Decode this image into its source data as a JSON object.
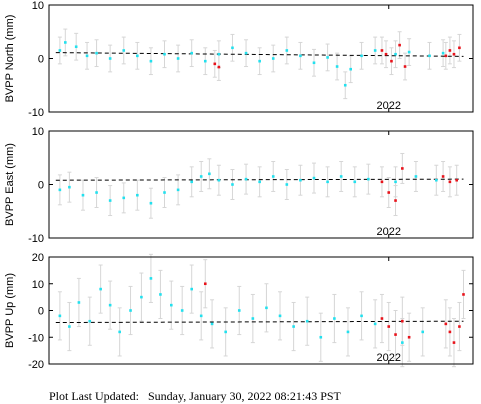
{
  "footer": {
    "label": "Plot Last Updated:",
    "timestamp": "Sunday, January 30, 2022 08:21:43 PST"
  },
  "colors": {
    "current_points": "#22e0ee",
    "recent_points": "#e8131b",
    "error_bars": "#d6d6d6",
    "trend": "#000000",
    "frame": "#000000"
  },
  "chart_data": [
    {
      "type": "scatter",
      "ylabel": "BVPP North (mm)",
      "ylim": [
        -10,
        10
      ],
      "yticks": [
        -10,
        0,
        10
      ],
      "xtick_label": "2022",
      "grid": false,
      "error_bar_mm": 2.5,
      "trend": {
        "x": [
          2019.55,
          2022.55
        ],
        "y": [
          1.1,
          0.4
        ],
        "style": "dashed"
      },
      "series": [
        {
          "color": "#22e0ee",
          "x": [
            2019.58,
            2019.62,
            2019.7,
            2019.78,
            2019.85,
            2019.95,
            2020.05,
            2020.15,
            2020.25,
            2020.35,
            2020.45,
            2020.55,
            2020.65,
            2020.75,
            2020.85,
            2020.95,
            2021.05,
            2021.15,
            2021.25,
            2021.35,
            2021.45,
            2021.55,
            2021.62,
            2021.68,
            2021.72,
            2021.8,
            2021.9,
            2022.05,
            2022.15,
            2022.3,
            2022.4
          ],
          "y": [
            1.5,
            3.0,
            2.2,
            0.5,
            1.0,
            0.0,
            1.5,
            0.5,
            -0.5,
            0.8,
            0.0,
            1.0,
            -0.5,
            0.8,
            2.0,
            1.0,
            -0.5,
            0.0,
            1.5,
            0.5,
            -0.8,
            0.2,
            -1.5,
            -5.0,
            -2.0,
            0.5,
            1.5,
            0.8,
            1.2,
            0.5,
            1.0
          ]
        },
        {
          "color": "#e8131b",
          "x": [
            2020.72,
            2020.75,
            2021.95,
            2021.98,
            2022.02,
            2022.08,
            2022.12,
            2022.42,
            2022.45,
            2022.48,
            2022.52
          ],
          "y": [
            -1.0,
            -1.6,
            1.5,
            0.8,
            -0.5,
            2.5,
            -1.5,
            0.5,
            1.5,
            0.8,
            2.0
          ]
        }
      ]
    },
    {
      "type": "scatter",
      "ylabel": "BVPP East (mm)",
      "ylim": [
        -10,
        10
      ],
      "yticks": [
        -10,
        0,
        10
      ],
      "xtick_label": "2022",
      "grid": false,
      "error_bar_mm": 2.8,
      "trend": {
        "x": [
          2019.55,
          2022.55
        ],
        "y": [
          0.8,
          1.0
        ],
        "style": "dashed"
      },
      "series": [
        {
          "color": "#22e0ee",
          "x": [
            2019.58,
            2019.65,
            2019.75,
            2019.85,
            2019.95,
            2020.05,
            2020.15,
            2020.25,
            2020.35,
            2020.45,
            2020.55,
            2020.62,
            2020.68,
            2020.75,
            2020.85,
            2020.95,
            2021.05,
            2021.15,
            2021.25,
            2021.35,
            2021.45,
            2021.55,
            2021.65,
            2021.75,
            2021.85,
            2022.05,
            2022.2,
            2022.35
          ],
          "y": [
            -1.0,
            -0.5,
            -2.0,
            -1.5,
            -3.0,
            -2.5,
            -2.0,
            -3.5,
            -1.5,
            -1.0,
            0.5,
            1.5,
            2.0,
            0.8,
            0.0,
            1.0,
            0.5,
            1.5,
            0.0,
            0.8,
            1.2,
            0.5,
            1.5,
            0.5,
            1.0,
            0.5,
            1.5,
            0.8
          ]
        },
        {
          "color": "#e8131b",
          "x": [
            2021.95,
            2022.0,
            2022.05,
            2022.1,
            2022.4,
            2022.45,
            2022.5
          ],
          "y": [
            0.5,
            -1.5,
            -3.0,
            3.0,
            1.5,
            0.5,
            0.8
          ]
        }
      ]
    },
    {
      "type": "scatter",
      "ylabel": "BVPP Up (mm)",
      "ylim": [
        -20,
        20
      ],
      "yticks": [
        -20,
        -10,
        0,
        10,
        20
      ],
      "xtick_label": "2022",
      "grid": false,
      "error_bar_mm": 9,
      "trend": {
        "x": [
          2019.55,
          2022.55
        ],
        "y": [
          -4.5,
          -4.0
        ],
        "style": "dashed"
      },
      "series": [
        {
          "color": "#22e0ee",
          "x": [
            2019.58,
            2019.65,
            2019.72,
            2019.8,
            2019.88,
            2019.95,
            2020.02,
            2020.1,
            2020.18,
            2020.25,
            2020.32,
            2020.4,
            2020.48,
            2020.55,
            2020.62,
            2020.7,
            2020.8,
            2020.9,
            2021.0,
            2021.1,
            2021.2,
            2021.3,
            2021.4,
            2021.5,
            2021.6,
            2021.7,
            2021.8,
            2021.9,
            2022.1,
            2022.25
          ],
          "y": [
            -2.0,
            -6.0,
            3.0,
            -4.0,
            8.0,
            2.0,
            -8.0,
            0.0,
            5.0,
            12.0,
            6.0,
            2.0,
            0.0,
            8.0,
            -2.0,
            -5.0,
            -8.0,
            0.0,
            -3.0,
            1.0,
            -2.0,
            -6.0,
            -4.0,
            -10.0,
            -3.0,
            -8.0,
            -2.0,
            -5.0,
            -12.0,
            -8.0
          ]
        },
        {
          "color": "#e8131b",
          "x": [
            2020.65,
            2021.95,
            2022.0,
            2022.05,
            2022.1,
            2022.15,
            2022.42,
            2022.45,
            2022.48,
            2022.52,
            2022.55
          ],
          "y": [
            10.0,
            -3.0,
            -6.0,
            -9.0,
            -4.0,
            -10.0,
            -5.0,
            -8.0,
            -12.0,
            -6.0,
            6.0
          ]
        }
      ]
    }
  ]
}
